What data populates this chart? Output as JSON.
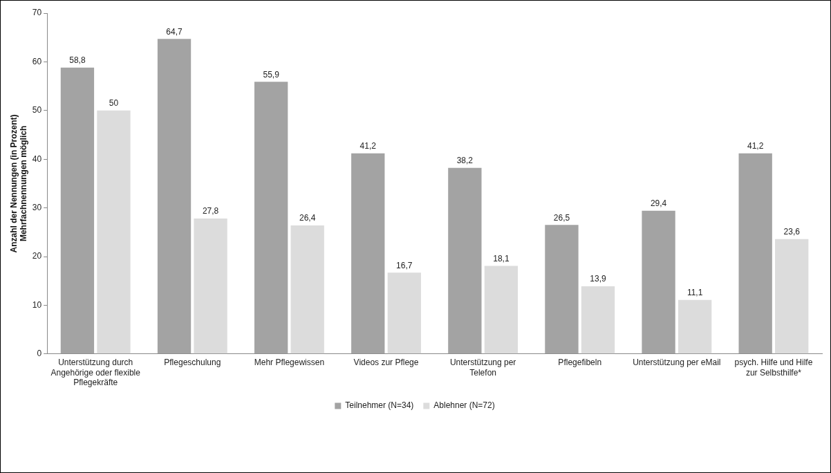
{
  "chart_data": {
    "type": "bar",
    "ylabel": "Anzahl der Nennungen (in Prozent)\nMehrfachnennungen möglich",
    "categories": [
      "Unterstützung durch Angehörige oder flexible Pflegekräfte",
      "Pflegeschulung",
      "Mehr Pflegewissen",
      "Videos zur Pflege",
      "Unterstützung per Telefon",
      "Pflegefibeln",
      "Unterstützung per eMail",
      "psych. Hilfe und Hilfe zur Selbsthilfe*"
    ],
    "series": [
      {
        "name": "Teilnehmer (N=34)",
        "color": "#a3a3a3",
        "values": [
          58.8,
          64.7,
          55.9,
          41.2,
          38.2,
          26.5,
          29.4,
          41.2
        ],
        "value_labels": [
          "58,8",
          "64,7",
          "55,9",
          "41,2",
          "38,2",
          "26,5",
          "29,4",
          "41,2"
        ]
      },
      {
        "name": "Ablehner (N=72)",
        "color": "#dcdcdc",
        "values": [
          50,
          27.8,
          26.4,
          16.7,
          18.1,
          13.9,
          11.1,
          23.6
        ],
        "value_labels": [
          "50",
          "27,8",
          "26,4",
          "16,7",
          "18,1",
          "13,9",
          "11,1",
          "23,6"
        ]
      }
    ],
    "ylim": [
      0,
      70
    ],
    "yticks": [
      0,
      10,
      20,
      30,
      40,
      50,
      60,
      70
    ],
    "grid": false,
    "legend": "bottom"
  }
}
